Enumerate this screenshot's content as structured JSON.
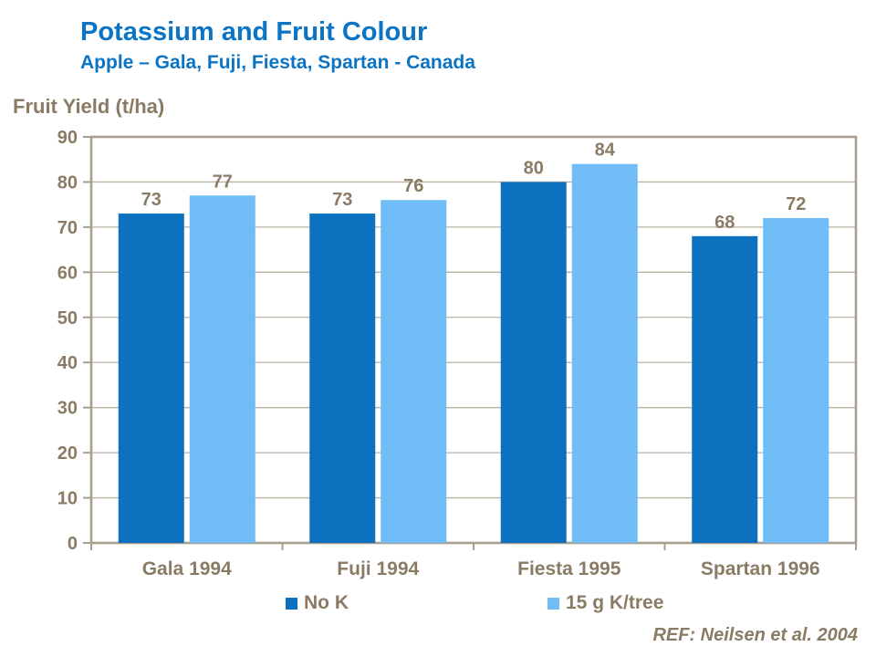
{
  "page": {
    "title": "Potassium and Fruit Colour",
    "subtitle": "Apple – Gala, Fuji, Fiesta, Spartan - Canada",
    "reference": "REF: Neilsen et al. 2004"
  },
  "colors": {
    "title_blue": "#0b74c4",
    "text_taupe": "#8a7b64",
    "grid_line": "#bcb2a4",
    "axis_line": "#a99f8f",
    "background": "#ffffff"
  },
  "chart_data": {
    "type": "bar",
    "title": "Potassium and Fruit Colour",
    "subtitle": "Apple – Gala, Fuji, Fiesta, Spartan - Canada",
    "xlabel": "",
    "ylabel": "Fruit Yield (t/ha)",
    "categories": [
      "Gala 1994",
      "Fuji 1994",
      "Fiesta 1995",
      "Spartan 1996"
    ],
    "series": [
      {
        "name": "No K",
        "color": "#0c71be",
        "values": [
          73,
          73,
          80,
          68
        ]
      },
      {
        "name": "15 g K/tree",
        "color": "#6fbcf6",
        "values": [
          77,
          76,
          84,
          72
        ]
      }
    ],
    "ylim": [
      0,
      90
    ],
    "yticks": [
      0,
      10,
      20,
      30,
      40,
      50,
      60,
      70,
      80,
      90
    ],
    "grid": true,
    "value_labels": true,
    "legend_position": "bottom"
  }
}
